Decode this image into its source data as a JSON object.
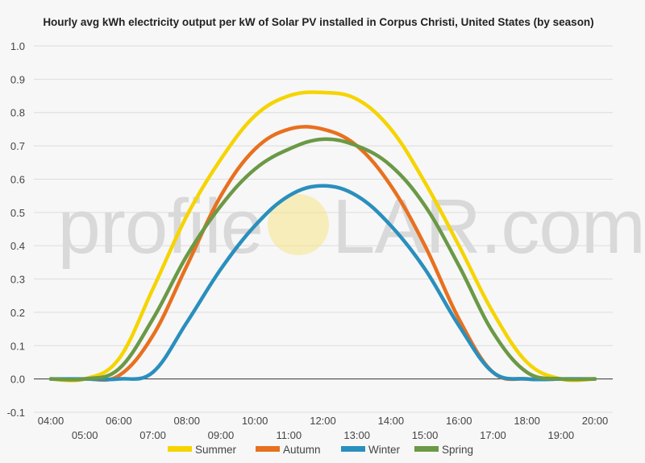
{
  "chart_data": {
    "type": "line",
    "title": "Hourly avg kWh electricity output per kW of Solar PV installed in Corpus Christi, United States (by season)",
    "xlabel": "",
    "ylabel": "",
    "ylim": [
      -0.1,
      1.0
    ],
    "yticks": [
      "-0.1",
      "0.0",
      "0.1",
      "0.2",
      "0.3",
      "0.4",
      "0.5",
      "0.6",
      "0.7",
      "0.8",
      "0.9",
      "1.0"
    ],
    "categories": [
      "04:00",
      "05:00",
      "06:00",
      "07:00",
      "08:00",
      "09:00",
      "10:00",
      "11:00",
      "12:00",
      "13:00",
      "14:00",
      "15:00",
      "16:00",
      "17:00",
      "18:00",
      "19:00",
      "20:00"
    ],
    "grid": true,
    "legend_position": "bottom",
    "watermark": {
      "left": "profile",
      "right": "LAR.com",
      "sun_color": "#f5e58a"
    },
    "series": [
      {
        "name": "Summer",
        "color": "#f5d400",
        "values": [
          0.0,
          0.0,
          0.06,
          0.27,
          0.49,
          0.66,
          0.79,
          0.85,
          0.86,
          0.84,
          0.75,
          0.59,
          0.4,
          0.2,
          0.05,
          0.0,
          0.0
        ]
      },
      {
        "name": "Autumn",
        "color": "#e8701f",
        "values": [
          0.0,
          0.0,
          0.01,
          0.13,
          0.34,
          0.55,
          0.69,
          0.75,
          0.75,
          0.7,
          0.58,
          0.4,
          0.18,
          0.02,
          0.0,
          0.0,
          0.0
        ]
      },
      {
        "name": "Winter",
        "color": "#2a8fbd",
        "values": [
          0.0,
          0.0,
          0.0,
          0.02,
          0.17,
          0.33,
          0.46,
          0.55,
          0.58,
          0.55,
          0.46,
          0.33,
          0.16,
          0.02,
          0.0,
          0.0,
          0.0
        ]
      },
      {
        "name": "Spring",
        "color": "#6b9946",
        "values": [
          0.0,
          0.0,
          0.03,
          0.18,
          0.37,
          0.52,
          0.63,
          0.69,
          0.72,
          0.7,
          0.64,
          0.52,
          0.34,
          0.14,
          0.02,
          0.0,
          0.0
        ]
      }
    ]
  }
}
